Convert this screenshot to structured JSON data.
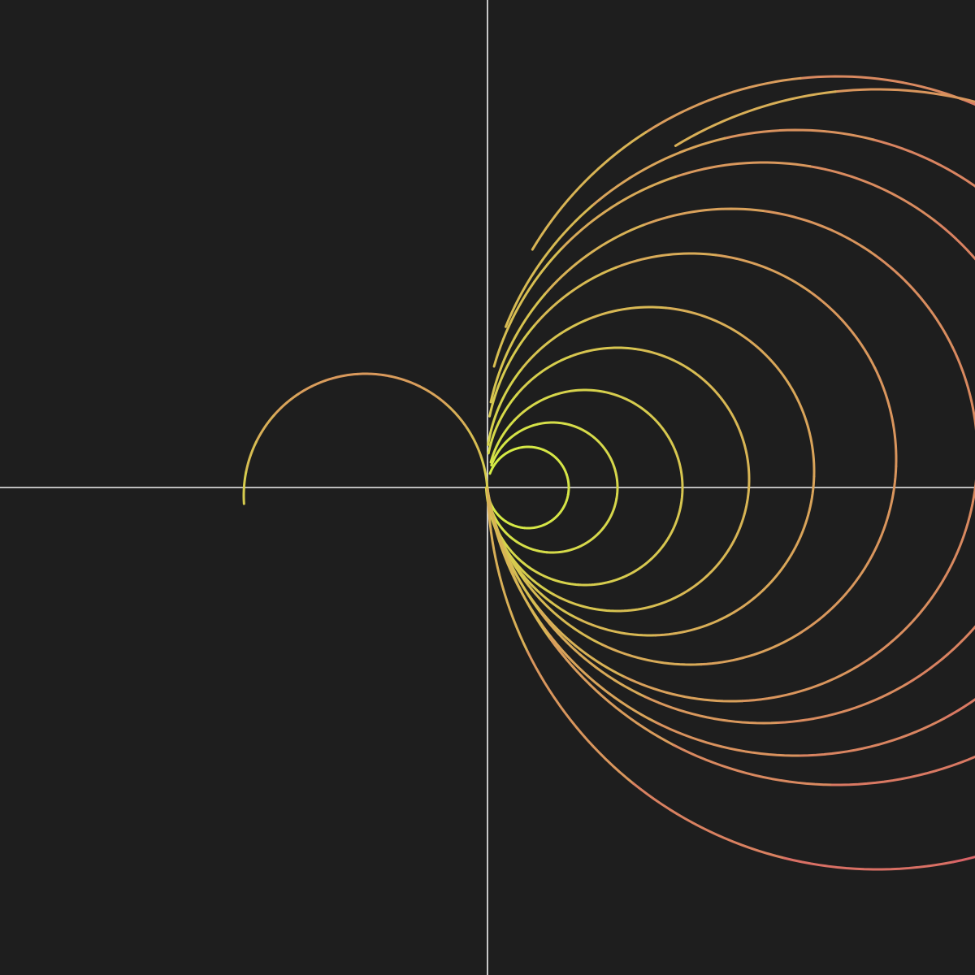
{
  "canvas": {
    "background": "#1e1e1e",
    "axis_color": "#f2f2f2",
    "axes": [
      "horizontal",
      "vertical"
    ]
  },
  "color_gradient": {
    "near_origin": "#d4f542",
    "mid": "#d9a05b",
    "outer": "#d9566a"
  },
  "figure": {
    "description_type": "family of circular arcs through a common focal point at the axes origin",
    "focal_point": "origin",
    "arcs": [
      {
        "name": "arc-1",
        "center": [
          0.5,
          0.0
        ],
        "radius": 0.5,
        "sweep_deg": 340,
        "color_t": 0.1
      },
      {
        "name": "arc-2",
        "center": [
          0.8,
          0.0
        ],
        "radius": 0.8,
        "sweep_deg": 340,
        "color_t": 0.18
      },
      {
        "name": "arc-3",
        "center": [
          1.2,
          0.0
        ],
        "radius": 1.2,
        "sweep_deg": 345,
        "color_t": 0.28
      },
      {
        "name": "arc-4",
        "center": [
          1.6,
          0.1
        ],
        "radius": 1.62,
        "sweep_deg": 345,
        "color_t": 0.38
      },
      {
        "name": "arc-5",
        "center": [
          2.0,
          0.2
        ],
        "radius": 2.02,
        "sweep_deg": 345,
        "color_t": 0.48
      },
      {
        "name": "arc-6",
        "center": [
          2.5,
          0.35
        ],
        "radius": 2.53,
        "sweep_deg": 340,
        "color_t": 0.58
      },
      {
        "name": "arc-7",
        "center": [
          3.0,
          0.4
        ],
        "radius": 3.03,
        "sweep_deg": 340,
        "color_t": 0.66
      },
      {
        "name": "arc-8",
        "center": [
          3.4,
          0.55
        ],
        "radius": 3.45,
        "sweep_deg": 335,
        "color_t": 0.74
      },
      {
        "name": "arc-9",
        "center": [
          3.8,
          0.55
        ],
        "radius": 3.85,
        "sweep_deg": 330,
        "color_t": 0.8
      },
      {
        "name": "arc-10",
        "center": [
          4.3,
          0.7
        ],
        "radius": 4.36,
        "sweep_deg": 320,
        "color_t": 0.88
      },
      {
        "name": "arc-11",
        "center": [
          4.8,
          0.1
        ],
        "radius": 4.8,
        "sweep_deg": 300,
        "color_t": 0.95
      },
      {
        "name": "arc-12",
        "center": [
          -1.5,
          -0.1
        ],
        "radius": 1.5,
        "sweep_deg": 180,
        "color_t": 0.55
      }
    ]
  }
}
